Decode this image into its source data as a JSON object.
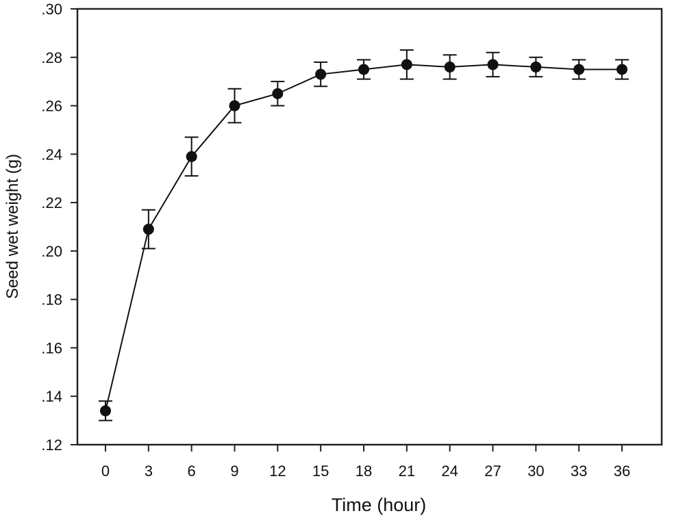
{
  "chart_data": {
    "type": "line",
    "title": "",
    "xlabel": "Time (hour)",
    "ylabel": "Seed wet weight (g)",
    "x": [
      0,
      3,
      6,
      9,
      12,
      15,
      18,
      21,
      24,
      27,
      30,
      33,
      36
    ],
    "series": [
      {
        "name": "Seed wet weight",
        "values": [
          0.134,
          0.209,
          0.239,
          0.26,
          0.265,
          0.273,
          0.275,
          0.277,
          0.276,
          0.277,
          0.276,
          0.275,
          0.275
        ],
        "error": [
          0.004,
          0.008,
          0.008,
          0.007,
          0.005,
          0.005,
          0.004,
          0.006,
          0.005,
          0.005,
          0.004,
          0.004,
          0.004
        ]
      }
    ],
    "xticks": [
      "0",
      "3",
      "6",
      "9",
      "12",
      "15",
      "18",
      "21",
      "24",
      "27",
      "30",
      "33",
      "36"
    ],
    "yticks": [
      ".12",
      ".14",
      ".16",
      ".18",
      ".20",
      ".22",
      ".24",
      ".26",
      ".28",
      ".30"
    ],
    "ytick_values": [
      0.12,
      0.14,
      0.16,
      0.18,
      0.2,
      0.22,
      0.24,
      0.26,
      0.28,
      0.3
    ],
    "xlim": [
      -3.4,
      38
    ],
    "ylim": [
      0.12,
      0.3
    ],
    "grid": false,
    "colors": {
      "line": "#111111",
      "marker": "#111111"
    }
  }
}
